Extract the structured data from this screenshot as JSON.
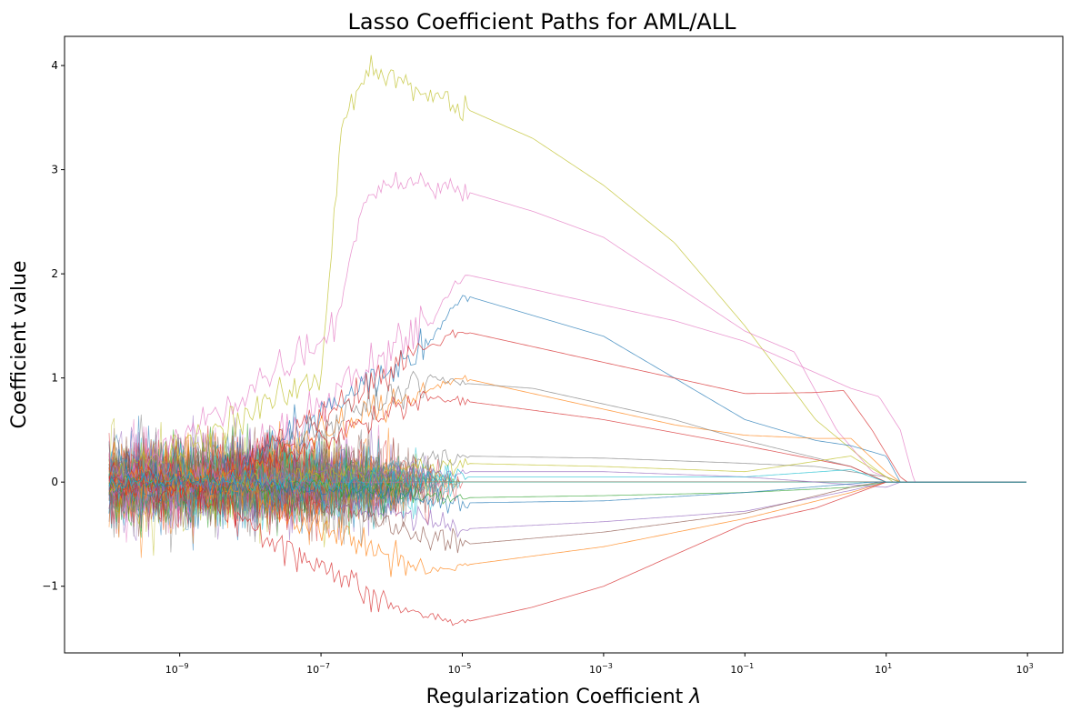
{
  "chart_data": {
    "type": "line",
    "title": "Lasso Coefficient Paths for AML/ALL",
    "xlabel": "Regularization Coefficient",
    "xlabel_symbol": "λ",
    "ylabel": "Coefficient value",
    "xscale": "log",
    "xlim_log10": [
      -10.63,
      3.5
    ],
    "ylim": [
      -1.64,
      4.28
    ],
    "data_x_range_log10": [
      -10,
      3
    ],
    "grid": false,
    "legend": "none",
    "x_ticks": [
      {
        "exp": -9,
        "label": "10",
        "sup": "−9"
      },
      {
        "exp": -7,
        "label": "10",
        "sup": "−7"
      },
      {
        "exp": -5,
        "label": "10",
        "sup": "−5"
      },
      {
        "exp": -3,
        "label": "10",
        "sup": "−3"
      },
      {
        "exp": -1,
        "label": "10",
        "sup": "−1"
      },
      {
        "exp": 1,
        "label": "10",
        "sup": "1"
      },
      {
        "exp": 3,
        "label": "10",
        "sup": "3"
      }
    ],
    "y_ticks": [
      {
        "value": -1,
        "label": "−1"
      },
      {
        "value": 0,
        "label": "0"
      },
      {
        "value": 1,
        "label": "1"
      },
      {
        "value": 2,
        "label": "2"
      },
      {
        "value": 3,
        "label": "3"
      },
      {
        "value": 4,
        "label": "4"
      }
    ],
    "colors": [
      "#1f77b4",
      "#ff7f0e",
      "#2ca02c",
      "#d62728",
      "#9467bd",
      "#8c564b",
      "#e377c2",
      "#7f7f7f",
      "#bcbd22",
      "#17becf"
    ],
    "background_series_count": 90,
    "series": [
      {
        "name": "olive-top",
        "color": "#bcbd22",
        "points": [
          [
            -7,
            1.0
          ],
          [
            -6.7,
            3.5
          ],
          [
            -6.3,
            4.0
          ],
          [
            -5.8,
            3.8
          ],
          [
            -5,
            3.6
          ],
          [
            -4,
            3.3
          ],
          [
            -3,
            2.85
          ],
          [
            -2,
            2.3
          ],
          [
            -1,
            1.5
          ],
          [
            0,
            0.6
          ],
          [
            0.8,
            0.15
          ],
          [
            1.1,
            0
          ]
        ]
      },
      {
        "name": "pink-high",
        "color": "#e377c2",
        "points": [
          [
            -6.8,
            1.5
          ],
          [
            -6.4,
            2.7
          ],
          [
            -6,
            2.9
          ],
          [
            -5,
            2.8
          ],
          [
            -4,
            2.6
          ],
          [
            -3,
            2.35
          ],
          [
            -2,
            1.9
          ],
          [
            -1,
            1.45
          ],
          [
            -0.3,
            1.25
          ],
          [
            0.3,
            0.5
          ],
          [
            0.8,
            0.1
          ],
          [
            1.2,
            0
          ]
        ]
      },
      {
        "name": "pink-mid",
        "color": "#e377c2",
        "points": [
          [
            -5.5,
            1.5
          ],
          [
            -5,
            2.0
          ],
          [
            -4,
            1.85
          ],
          [
            -3,
            1.7
          ],
          [
            -2,
            1.55
          ],
          [
            -1,
            1.35
          ],
          [
            0,
            1.05
          ],
          [
            0.5,
            0.9
          ],
          [
            0.9,
            0.82
          ],
          [
            1.2,
            0.5
          ],
          [
            1.4,
            0
          ]
        ]
      },
      {
        "name": "blue-high",
        "color": "#1f77b4",
        "points": [
          [
            -5.5,
            1.3
          ],
          [
            -5,
            1.8
          ],
          [
            -4,
            1.6
          ],
          [
            -3,
            1.4
          ],
          [
            -2,
            1.0
          ],
          [
            -1,
            0.6
          ],
          [
            0,
            0.4
          ],
          [
            0.5,
            0.35
          ],
          [
            1,
            0.25
          ],
          [
            1.2,
            0
          ]
        ]
      },
      {
        "name": "red-high",
        "color": "#d62728",
        "points": [
          [
            -5.5,
            1.3
          ],
          [
            -5,
            1.45
          ],
          [
            -4,
            1.3
          ],
          [
            -3,
            1.15
          ],
          [
            -2,
            1.0
          ],
          [
            -1,
            0.85
          ],
          [
            0,
            0.86
          ],
          [
            0.4,
            0.88
          ],
          [
            0.8,
            0.5
          ],
          [
            1.2,
            0.05
          ],
          [
            1.3,
            0
          ]
        ]
      },
      {
        "name": "orange-mid",
        "color": "#ff7f0e",
        "points": [
          [
            -5.5,
            0.9
          ],
          [
            -5,
            1.0
          ],
          [
            -4,
            0.85
          ],
          [
            -3,
            0.7
          ],
          [
            -2,
            0.55
          ],
          [
            -1,
            0.45
          ],
          [
            0,
            0.42
          ],
          [
            0.5,
            0.42
          ],
          [
            1,
            0.1
          ],
          [
            1.2,
            0
          ]
        ]
      },
      {
        "name": "gray-mid",
        "color": "#7f7f7f",
        "points": [
          [
            -5.5,
            1.0
          ],
          [
            -5,
            0.95
          ],
          [
            -4,
            0.9
          ],
          [
            -2,
            0.6
          ],
          [
            -1,
            0.4
          ],
          [
            0.5,
            0.15
          ],
          [
            1,
            0
          ]
        ]
      },
      {
        "name": "red-mid",
        "color": "#d62728",
        "points": [
          [
            -5.5,
            0.8
          ],
          [
            -5,
            0.78
          ],
          [
            -3,
            0.6
          ],
          [
            -1,
            0.35
          ],
          [
            0.5,
            0.15
          ],
          [
            1,
            0
          ]
        ]
      },
      {
        "name": "gray-low",
        "color": "#7f7f7f",
        "points": [
          [
            -5,
            0.25
          ],
          [
            -3,
            0.23
          ],
          [
            -1,
            0.18
          ],
          [
            0,
            0.15
          ],
          [
            1,
            0.05
          ],
          [
            1.2,
            0
          ]
        ]
      },
      {
        "name": "olive-low",
        "color": "#bcbd22",
        "points": [
          [
            -5,
            0.18
          ],
          [
            -3,
            0.15
          ],
          [
            -1,
            0.1
          ],
          [
            0.5,
            0.25
          ],
          [
            1,
            0.05
          ],
          [
            1.2,
            0
          ]
        ]
      },
      {
        "name": "purple-low",
        "color": "#9467bd",
        "points": [
          [
            -5,
            0.1
          ],
          [
            -3,
            0.1
          ],
          [
            -1,
            0.05
          ],
          [
            1,
            -0.05
          ],
          [
            1.2,
            0
          ]
        ]
      },
      {
        "name": "green-neg",
        "color": "#2ca02c",
        "points": [
          [
            -5,
            -0.15
          ],
          [
            -3,
            -0.13
          ],
          [
            -1,
            -0.1
          ],
          [
            0.5,
            -0.05
          ],
          [
            1,
            0
          ]
        ]
      },
      {
        "name": "purple-neg",
        "color": "#9467bd",
        "points": [
          [
            -5,
            -0.45
          ],
          [
            -3,
            -0.38
          ],
          [
            -1,
            -0.28
          ],
          [
            0.5,
            -0.08
          ],
          [
            1,
            0
          ]
        ]
      },
      {
        "name": "brown-neg",
        "color": "#8c564b",
        "points": [
          [
            -5,
            -0.6
          ],
          [
            -3,
            -0.48
          ],
          [
            -1,
            -0.3
          ],
          [
            0.5,
            -0.05
          ],
          [
            0.9,
            0
          ]
        ]
      },
      {
        "name": "orange-neg",
        "color": "#ff7f0e",
        "points": [
          [
            -5.5,
            -0.85
          ],
          [
            -5,
            -0.8
          ],
          [
            -3,
            -0.62
          ],
          [
            -1,
            -0.35
          ],
          [
            0.5,
            -0.1
          ],
          [
            1,
            0
          ]
        ]
      },
      {
        "name": "red-neg",
        "color": "#d62728",
        "points": [
          [
            -6,
            -1.2
          ],
          [
            -5,
            -1.35
          ],
          [
            -4,
            -1.2
          ],
          [
            -3,
            -1.0
          ],
          [
            -2,
            -0.7
          ],
          [
            -1,
            -0.4
          ],
          [
            0,
            -0.25
          ],
          [
            0.6,
            -0.1
          ],
          [
            1,
            0
          ]
        ]
      },
      {
        "name": "blue-neg",
        "color": "#1f77b4",
        "points": [
          [
            -5,
            -0.2
          ],
          [
            -3,
            -0.18
          ],
          [
            -1,
            -0.1
          ],
          [
            0.8,
            0
          ]
        ]
      },
      {
        "name": "cyan-low",
        "color": "#17becf",
        "points": [
          [
            -5,
            0.05
          ],
          [
            -1,
            0.05
          ],
          [
            0.5,
            0.12
          ],
          [
            1,
            0
          ]
        ]
      }
    ]
  }
}
